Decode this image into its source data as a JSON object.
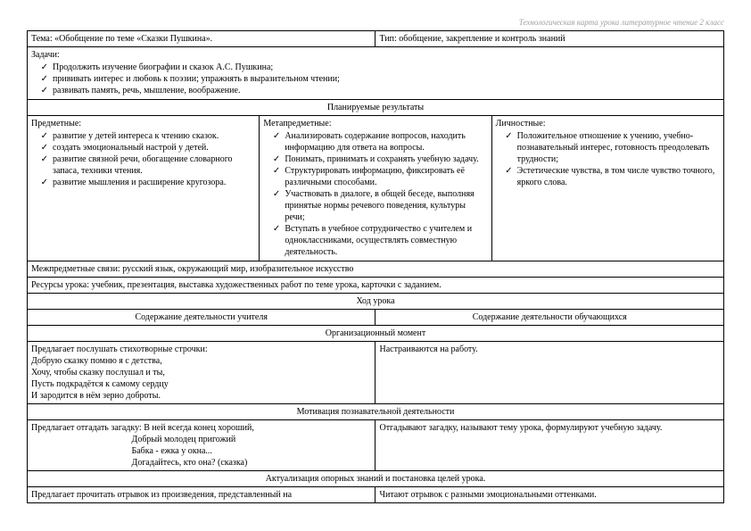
{
  "header_caption": "Технологическая карта урока литературное чтение 2 класс",
  "topic_label": "Тема: «Обобщение по теме «Сказки Пушкина».",
  "type_label": "Тип: обобщение, закрепление и контроль знаний",
  "tasks_header": "Задачи:",
  "tasks": [
    "Продолжить изучение биографии и сказок А.С. Пушкина;",
    "прививать интерес и любовь к поэзии; упражнять в выразительном чтении;",
    "развивать память, речь, мышление, воображение."
  ],
  "results_header": "Планируемые результаты",
  "subject_header": "Предметные:",
  "subject_items": [
    "развитие у детей интереса к чтению сказок.",
    "создать эмоциональный настрой у детей.",
    "развитие связной речи, обогащение словарного запаса, техники чтения.",
    "развитие мышления и расширение кругозора."
  ],
  "meta_header": "Метапредметные:",
  "meta_items": [
    "Анализировать содержание вопросов, находить информацию для ответа на вопросы.",
    "Понимать, принимать и сохранять учебную задачу.",
    "Структурировать информацию, фиксировать её различными способами.",
    "Участвовать в диалоге, в общей беседе, выполняя принятые нормы речевого поведения, культуры речи;",
    "Вступать в учебное сотрудничество с учителем и одноклассниками, осуществлять совместную деятельность."
  ],
  "personal_header": "Личностные:",
  "personal_items": [
    "Положительное отношение к учению, учебно-познавательный интерес, готовность преодолевать трудности;",
    "Эстетические чувства, в том числе чувство точного, яркого слова."
  ],
  "intersubject": "Межпредметные связи: русский язык, окружающий мир, изобразительное искусство",
  "resources": "Ресурсы урока: учебник, презентация, выставка художественных работ по теме урока, карточки с заданием.",
  "lesson_flow_header": "Ход урока",
  "teacher_col_header": "Содержание деятельности учителя",
  "student_col_header": "Содержание деятельности обучающихся",
  "org_moment_header": "Организационный момент",
  "org_teacher": "Предлагает послушать стихотворные строчки:\nДобрую сказку помню я с детства,\nХочу, чтобы сказку послушал и ты,\nПусть подкрадётся к самому сердцу\nИ зародится в нём зерно доброты.",
  "org_student": "Настраиваются на работу.",
  "motivation_header": "Мотивация познавательной деятельности",
  "motivation_teacher": "Предлагает отгадать загадку: В ней всегда конец хороший,\n                                             Добрый молодец пригожий\n                                             Бабка - ежка у окна...\n                                             Догадайтесь, кто она? (сказка)",
  "motivation_student": "Отгадывают загадку, называют тему урока, формулируют учебную задачу.",
  "actualization_header": "Актуализация опорных знаний и постановка целей урока.",
  "actual_teacher": "Предлагает прочитать отрывок из произведения, представленный на",
  "actual_student": "Читают отрывок с разными эмоциональными оттенками."
}
